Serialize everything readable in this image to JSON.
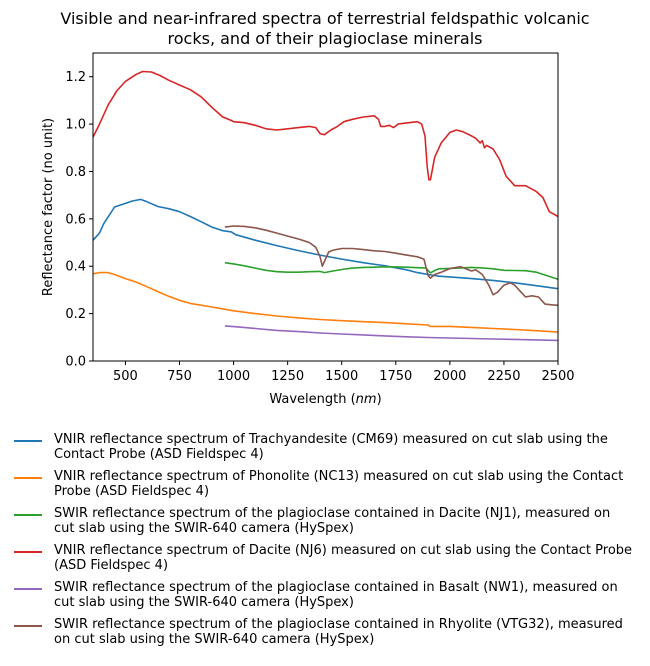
{
  "chart_data": {
    "type": "line",
    "title_lines": [
      "Visible and near-infrared spectra of terrestrial feldspathic volcanic",
      "rocks, and of their plagioclase minerals"
    ],
    "xlabel": "Wavelength (nm)",
    "ylabel": "Reflectance factor (no unit)",
    "xlim": [
      350,
      2500
    ],
    "ylim": [
      0,
      1.3
    ],
    "xticks": [
      500,
      750,
      1000,
      1250,
      1500,
      1750,
      2000,
      2250,
      2500
    ],
    "yticks": [
      0.0,
      0.2,
      0.4,
      0.6,
      0.8,
      1.0,
      1.2
    ],
    "grid": false,
    "legend_position": "below",
    "series": [
      {
        "name": "VNIR reflectance spectrum of Trachyandesite (CM69) measured on cut slab using the Contact Probe (ASD Fieldspec 4)",
        "color": "#1f77b4",
        "points": [
          [
            350,
            0.51
          ],
          [
            380,
            0.54
          ],
          [
            400,
            0.58
          ],
          [
            450,
            0.65
          ],
          [
            500,
            0.665
          ],
          [
            530,
            0.675
          ],
          [
            570,
            0.682
          ],
          [
            600,
            0.672
          ],
          [
            650,
            0.652
          ],
          [
            700,
            0.643
          ],
          [
            750,
            0.63
          ],
          [
            800,
            0.61
          ],
          [
            850,
            0.588
          ],
          [
            900,
            0.565
          ],
          [
            950,
            0.55
          ],
          [
            990,
            0.545
          ],
          [
            1010,
            0.533
          ],
          [
            1100,
            0.51
          ],
          [
            1200,
            0.487
          ],
          [
            1300,
            0.466
          ],
          [
            1400,
            0.447
          ],
          [
            1500,
            0.43
          ],
          [
            1600,
            0.415
          ],
          [
            1700,
            0.402
          ],
          [
            1800,
            0.385
          ],
          [
            1850,
            0.373
          ],
          [
            1900,
            0.365
          ],
          [
            1950,
            0.358
          ],
          [
            2000,
            0.355
          ],
          [
            2100,
            0.348
          ],
          [
            2200,
            0.34
          ],
          [
            2300,
            0.33
          ],
          [
            2400,
            0.318
          ],
          [
            2500,
            0.305
          ]
        ]
      },
      {
        "name": "VNIR reflectance spectrum of Phonolite (NC13) measured on cut slab using the Contact Probe (ASD Fieldspec 4)",
        "color": "#ff7f0e",
        "points": [
          [
            350,
            0.368
          ],
          [
            380,
            0.373
          ],
          [
            420,
            0.373
          ],
          [
            450,
            0.365
          ],
          [
            500,
            0.348
          ],
          [
            550,
            0.333
          ],
          [
            600,
            0.313
          ],
          [
            650,
            0.293
          ],
          [
            700,
            0.273
          ],
          [
            750,
            0.256
          ],
          [
            800,
            0.243
          ],
          [
            900,
            0.228
          ],
          [
            1000,
            0.212
          ],
          [
            1100,
            0.2
          ],
          [
            1200,
            0.19
          ],
          [
            1300,
            0.182
          ],
          [
            1400,
            0.175
          ],
          [
            1500,
            0.17
          ],
          [
            1600,
            0.166
          ],
          [
            1700,
            0.162
          ],
          [
            1800,
            0.157
          ],
          [
            1900,
            0.152
          ],
          [
            1910,
            0.146
          ],
          [
            2000,
            0.146
          ],
          [
            2100,
            0.142
          ],
          [
            2200,
            0.137
          ],
          [
            2300,
            0.133
          ],
          [
            2400,
            0.128
          ],
          [
            2500,
            0.122
          ]
        ]
      },
      {
        "name": "SWIR reflectance spectrum of the plagioclase contained in Dacite (NJ1), measured on cut slab using the SWIR-640 camera (HySpex)",
        "color": "#2ca02c",
        "points": [
          [
            960,
            0.415
          ],
          [
            1000,
            0.41
          ],
          [
            1050,
            0.402
          ],
          [
            1100,
            0.392
          ],
          [
            1150,
            0.383
          ],
          [
            1200,
            0.377
          ],
          [
            1250,
            0.375
          ],
          [
            1300,
            0.375
          ],
          [
            1350,
            0.377
          ],
          [
            1400,
            0.378
          ],
          [
            1420,
            0.373
          ],
          [
            1450,
            0.378
          ],
          [
            1500,
            0.386
          ],
          [
            1550,
            0.392
          ],
          [
            1600,
            0.395
          ],
          [
            1650,
            0.396
          ],
          [
            1700,
            0.397
          ],
          [
            1750,
            0.397
          ],
          [
            1800,
            0.396
          ],
          [
            1850,
            0.394
          ],
          [
            1890,
            0.392
          ],
          [
            1910,
            0.372
          ],
          [
            1930,
            0.382
          ],
          [
            1950,
            0.389
          ],
          [
            2000,
            0.391
          ],
          [
            2050,
            0.393
          ],
          [
            2100,
            0.395
          ],
          [
            2150,
            0.393
          ],
          [
            2200,
            0.389
          ],
          [
            2250,
            0.383
          ],
          [
            2300,
            0.382
          ],
          [
            2350,
            0.381
          ],
          [
            2400,
            0.375
          ],
          [
            2450,
            0.36
          ],
          [
            2500,
            0.345
          ]
        ]
      },
      {
        "name": "VNIR reflectance spectrum of Dacite (NJ6) measured on cut slab using the Contact Probe (ASD Fieldspec 4)",
        "color": "#d62728",
        "points": [
          [
            350,
            0.945
          ],
          [
            380,
            1.0
          ],
          [
            420,
            1.08
          ],
          [
            460,
            1.14
          ],
          [
            500,
            1.18
          ],
          [
            550,
            1.21
          ],
          [
            580,
            1.222
          ],
          [
            620,
            1.22
          ],
          [
            660,
            1.205
          ],
          [
            700,
            1.185
          ],
          [
            750,
            1.165
          ],
          [
            800,
            1.145
          ],
          [
            850,
            1.115
          ],
          [
            900,
            1.07
          ],
          [
            950,
            1.03
          ],
          [
            990,
            1.015
          ],
          [
            1000,
            1.01
          ],
          [
            1050,
            1.006
          ],
          [
            1100,
            0.995
          ],
          [
            1150,
            0.98
          ],
          [
            1200,
            0.975
          ],
          [
            1250,
            0.98
          ],
          [
            1300,
            0.985
          ],
          [
            1350,
            0.99
          ],
          [
            1380,
            0.985
          ],
          [
            1400,
            0.96
          ],
          [
            1420,
            0.955
          ],
          [
            1450,
            0.975
          ],
          [
            1480,
            0.99
          ],
          [
            1510,
            1.01
          ],
          [
            1550,
            1.02
          ],
          [
            1600,
            1.03
          ],
          [
            1650,
            1.035
          ],
          [
            1670,
            1.02
          ],
          [
            1680,
            0.99
          ],
          [
            1700,
            0.99
          ],
          [
            1720,
            0.995
          ],
          [
            1740,
            0.985
          ],
          [
            1760,
            1.0
          ],
          [
            1800,
            1.005
          ],
          [
            1850,
            1.01
          ],
          [
            1870,
            1.0
          ],
          [
            1885,
            0.95
          ],
          [
            1895,
            0.82
          ],
          [
            1903,
            0.765
          ],
          [
            1910,
            0.765
          ],
          [
            1930,
            0.86
          ],
          [
            1960,
            0.92
          ],
          [
            2000,
            0.965
          ],
          [
            2030,
            0.975
          ],
          [
            2060,
            0.968
          ],
          [
            2100,
            0.95
          ],
          [
            2120,
            0.94
          ],
          [
            2140,
            0.92
          ],
          [
            2150,
            0.93
          ],
          [
            2160,
            0.9
          ],
          [
            2170,
            0.91
          ],
          [
            2200,
            0.895
          ],
          [
            2230,
            0.85
          ],
          [
            2260,
            0.78
          ],
          [
            2300,
            0.74
          ],
          [
            2350,
            0.74
          ],
          [
            2400,
            0.715
          ],
          [
            2430,
            0.69
          ],
          [
            2460,
            0.63
          ],
          [
            2480,
            0.62
          ],
          [
            2500,
            0.61
          ]
        ]
      },
      {
        "name": "SWIR reflectance spectrum of the plagioclase contained in Basalt (NW1), measured on cut slab using the SWIR-640 camera (HySpex)",
        "color": "#9467bd",
        "points": [
          [
            960,
            0.148
          ],
          [
            1000,
            0.145
          ],
          [
            1100,
            0.137
          ],
          [
            1200,
            0.129
          ],
          [
            1300,
            0.124
          ],
          [
            1400,
            0.118
          ],
          [
            1500,
            0.114
          ],
          [
            1600,
            0.11
          ],
          [
            1700,
            0.106
          ],
          [
            1800,
            0.102
          ],
          [
            1900,
            0.099
          ],
          [
            2000,
            0.097
          ],
          [
            2100,
            0.095
          ],
          [
            2200,
            0.093
          ],
          [
            2300,
            0.091
          ],
          [
            2400,
            0.089
          ],
          [
            2500,
            0.087
          ]
        ]
      },
      {
        "name": "SWIR reflectance spectrum of the plagioclase contained in Rhyolite (VTG32), measured on cut slab using the SWIR-640 camera (HySpex)",
        "color": "#8c564b",
        "points": [
          [
            960,
            0.565
          ],
          [
            1000,
            0.57
          ],
          [
            1050,
            0.568
          ],
          [
            1100,
            0.562
          ],
          [
            1150,
            0.552
          ],
          [
            1200,
            0.54
          ],
          [
            1250,
            0.527
          ],
          [
            1300,
            0.515
          ],
          [
            1350,
            0.5
          ],
          [
            1380,
            0.48
          ],
          [
            1400,
            0.44
          ],
          [
            1410,
            0.4
          ],
          [
            1420,
            0.42
          ],
          [
            1440,
            0.46
          ],
          [
            1460,
            0.468
          ],
          [
            1500,
            0.475
          ],
          [
            1550,
            0.475
          ],
          [
            1600,
            0.47
          ],
          [
            1650,
            0.465
          ],
          [
            1700,
            0.462
          ],
          [
            1750,
            0.455
          ],
          [
            1800,
            0.447
          ],
          [
            1850,
            0.44
          ],
          [
            1880,
            0.43
          ],
          [
            1900,
            0.36
          ],
          [
            1910,
            0.35
          ],
          [
            1930,
            0.365
          ],
          [
            1960,
            0.375
          ],
          [
            2000,
            0.39
          ],
          [
            2050,
            0.398
          ],
          [
            2100,
            0.38
          ],
          [
            2120,
            0.385
          ],
          [
            2150,
            0.365
          ],
          [
            2180,
            0.32
          ],
          [
            2200,
            0.28
          ],
          [
            2220,
            0.29
          ],
          [
            2250,
            0.32
          ],
          [
            2280,
            0.33
          ],
          [
            2300,
            0.32
          ],
          [
            2330,
            0.29
          ],
          [
            2350,
            0.27
          ],
          [
            2380,
            0.275
          ],
          [
            2410,
            0.27
          ],
          [
            2440,
            0.24
          ],
          [
            2470,
            0.237
          ],
          [
            2500,
            0.235
          ]
        ]
      }
    ]
  }
}
